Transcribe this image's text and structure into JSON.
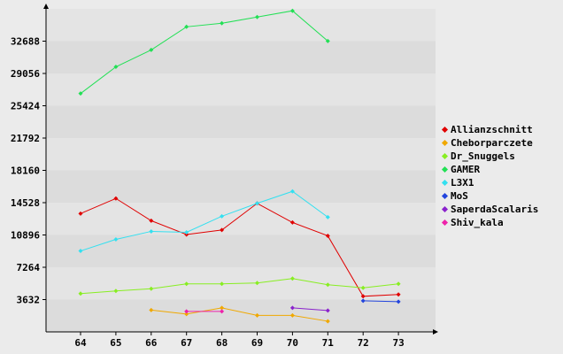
{
  "chart_data": {
    "type": "line",
    "title": "",
    "xlabel": "",
    "ylabel": "",
    "x": [
      64,
      65,
      66,
      67,
      68,
      69,
      70,
      71,
      72,
      73
    ],
    "ylim": [
      0,
      36320
    ],
    "yticks": [
      3632,
      7264,
      10896,
      14528,
      18160,
      21792,
      25424,
      29056,
      32688
    ],
    "grid": "horizontal bands",
    "legend_position": "right",
    "series": [
      {
        "name": "Allianzschnitt",
        "color": "#e00000",
        "points": [
          [
            64,
            13300
          ],
          [
            65,
            15000
          ],
          [
            66,
            12500
          ],
          [
            67,
            10950
          ],
          [
            68,
            11450
          ],
          [
            69,
            14450
          ],
          [
            70,
            12300
          ],
          [
            71,
            10800
          ],
          [
            72,
            4000
          ],
          [
            73,
            4200
          ]
        ]
      },
      {
        "name": "Cheborparczete",
        "color": "#f0a800",
        "points": [
          [
            66,
            2450
          ],
          [
            67,
            2000
          ],
          [
            68,
            2700
          ],
          [
            69,
            1850
          ],
          [
            70,
            1850
          ],
          [
            71,
            1200
          ]
        ]
      },
      {
        "name": "Dr_Snuggels",
        "color": "#88ee22",
        "points": [
          [
            64,
            4300
          ],
          [
            65,
            4600
          ],
          [
            66,
            4850
          ],
          [
            67,
            5400
          ],
          [
            68,
            5400
          ],
          [
            69,
            5500
          ],
          [
            70,
            6000
          ],
          [
            71,
            5300
          ],
          [
            72,
            4950
          ],
          [
            73,
            5400
          ]
        ]
      },
      {
        "name": "GAMER",
        "color": "#22e055",
        "points": [
          [
            64,
            26800
          ],
          [
            65,
            29800
          ],
          [
            66,
            31700
          ],
          [
            67,
            34300
          ],
          [
            68,
            34700
          ],
          [
            69,
            35400
          ],
          [
            70,
            36100
          ],
          [
            71,
            32700
          ]
        ]
      },
      {
        "name": "L3X1",
        "color": "#33e0f0",
        "points": [
          [
            64,
            9100
          ],
          [
            65,
            10400
          ],
          [
            66,
            11300
          ],
          [
            67,
            11200
          ],
          [
            68,
            13000
          ],
          [
            69,
            14450
          ],
          [
            70,
            15800
          ],
          [
            71,
            12900
          ]
        ]
      },
      {
        "name": "MoS",
        "color": "#2244dd",
        "points": [
          [
            72,
            3500
          ],
          [
            73,
            3400
          ]
        ]
      },
      {
        "name": "SaperdaScalaris",
        "color": "#8a22cc",
        "points": [
          [
            70,
            2700
          ],
          [
            71,
            2400
          ]
        ]
      },
      {
        "name": "Shiv_kala",
        "color": "#ee22aa",
        "points": [
          [
            67,
            2300
          ],
          [
            68,
            2300
          ]
        ]
      }
    ]
  }
}
